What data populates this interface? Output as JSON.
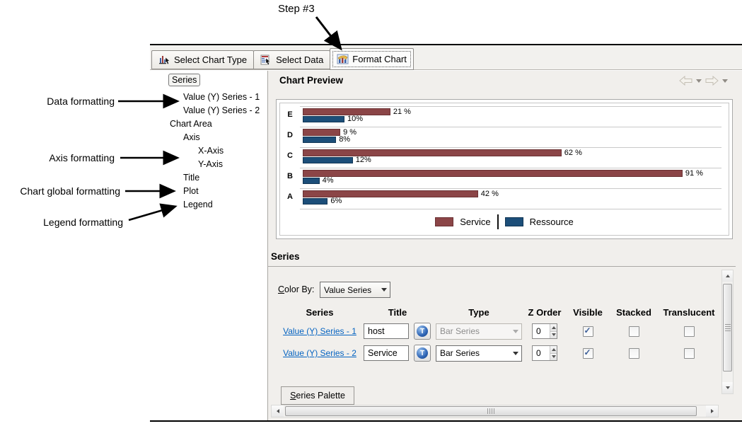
{
  "annotation": {
    "step_label": "Step #3",
    "callouts": [
      {
        "label": "Data formatting"
      },
      {
        "label": "Axis formatting"
      },
      {
        "label": "Chart global formatting"
      },
      {
        "label": "Legend formatting"
      }
    ]
  },
  "tabs": [
    {
      "label": "Select Chart Type",
      "icon": "chart-type-icon",
      "selected": false
    },
    {
      "label": "Select Data",
      "icon": "select-data-icon",
      "selected": false
    },
    {
      "label": "Format Chart",
      "icon": "format-chart-icon",
      "selected": true
    }
  ],
  "tree": {
    "items": [
      {
        "label": "Series",
        "level": 1,
        "selected": true
      },
      {
        "label": "Value (Y) Series - 1",
        "level": 2,
        "selected": false
      },
      {
        "label": "Value (Y) Series - 2",
        "level": 2,
        "selected": false
      },
      {
        "label": "Chart Area",
        "level": 1,
        "selected": false
      },
      {
        "label": "Axis",
        "level": 2,
        "selected": false
      },
      {
        "label": "X-Axis",
        "level": 3,
        "selected": false
      },
      {
        "label": "Y-Axis",
        "level": 3,
        "selected": false
      },
      {
        "label": "Title",
        "level": 2,
        "selected": false
      },
      {
        "label": "Plot",
        "level": 2,
        "selected": false
      },
      {
        "label": "Legend",
        "level": 2,
        "selected": false
      }
    ]
  },
  "chart_preview": {
    "title": "Chart Preview"
  },
  "chart_data": {
    "type": "bar",
    "orientation": "horizontal",
    "categories": [
      "E",
      "D",
      "C",
      "B",
      "A"
    ],
    "series": [
      {
        "name": "Service",
        "color": "#8B4547",
        "border": "#6B3234",
        "values": [
          21,
          9,
          62,
          91,
          42
        ],
        "labels": [
          "21 %",
          "9 %",
          "62 %",
          "91 %",
          "42 %"
        ]
      },
      {
        "name": "Ressource",
        "color": "#1C4E79",
        "border": "#123655",
        "values": [
          10,
          8,
          12,
          4,
          6
        ],
        "labels": [
          "10%",
          "8%",
          "12%",
          "4%",
          "6%"
        ]
      }
    ],
    "xlim": [
      0,
      100
    ],
    "data_labels": true,
    "legend_position": "bottom",
    "gridlines": "category separators"
  },
  "series_section": {
    "title": "Series",
    "color_by": {
      "label": "Color By:",
      "value": "Value Series"
    },
    "table": {
      "headers": [
        "Series",
        "Title",
        "Type",
        "Z Order",
        "Visible",
        "Stacked",
        "Translucent"
      ],
      "rows": [
        {
          "series": "Value (Y) Series - 1",
          "title": "host",
          "type": "Bar Series",
          "type_enabled": false,
          "z_order": "0",
          "visible": true,
          "stacked": false,
          "translucent": false
        },
        {
          "series": "Value (Y) Series - 2",
          "title": "Service",
          "type": "Bar Series",
          "type_enabled": true,
          "z_order": "0",
          "visible": true,
          "stacked": false,
          "translucent": false
        }
      ]
    },
    "palette_tab": "Series Palette"
  },
  "icons": {
    "back": "left-outline-arrow",
    "forward": "right-outline-arrow",
    "format_text": "blue-globe-T",
    "dropdown": "down-triangle"
  },
  "colors": {
    "service": "#8B4547",
    "ressource": "#1C4E79",
    "link": "#0563C1",
    "panel": "#F1EFEC"
  }
}
